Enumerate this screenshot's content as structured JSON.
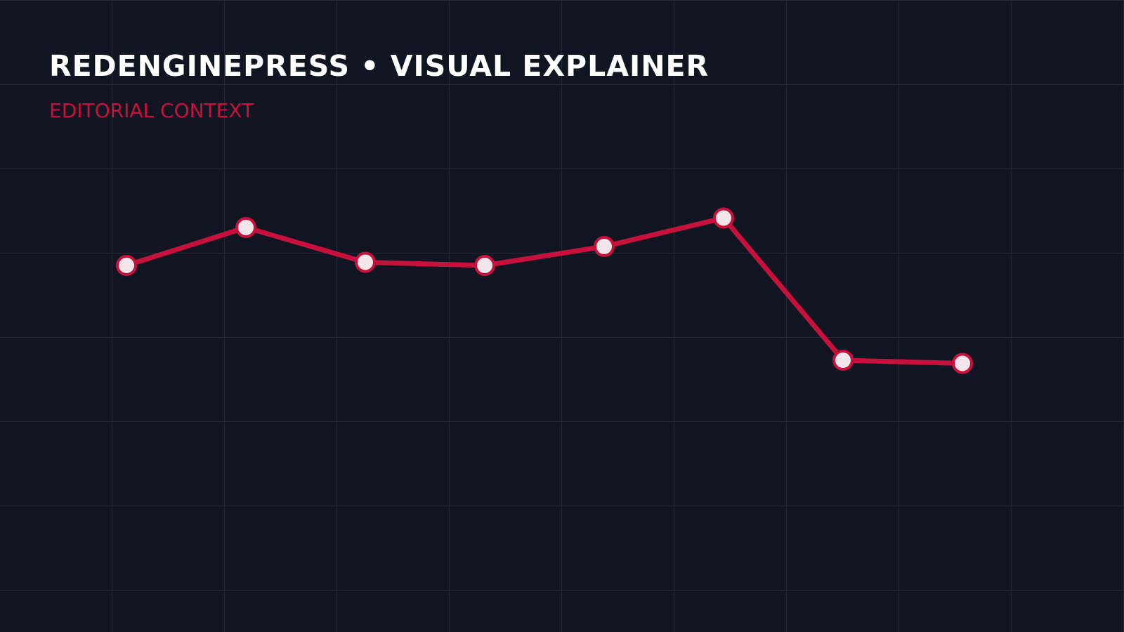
{
  "chart_data": {
    "type": "line",
    "title": "REDENGINEPRESS • VISUAL EXPLAINER",
    "subtitle": "EDITORIAL CONTEXT",
    "values": [
      58,
      64,
      58.5,
      58,
      61,
      65.5,
      43,
      42.5
    ],
    "color": "#c8103c",
    "ylim": [
      0,
      100
    ],
    "markers": true
  }
}
